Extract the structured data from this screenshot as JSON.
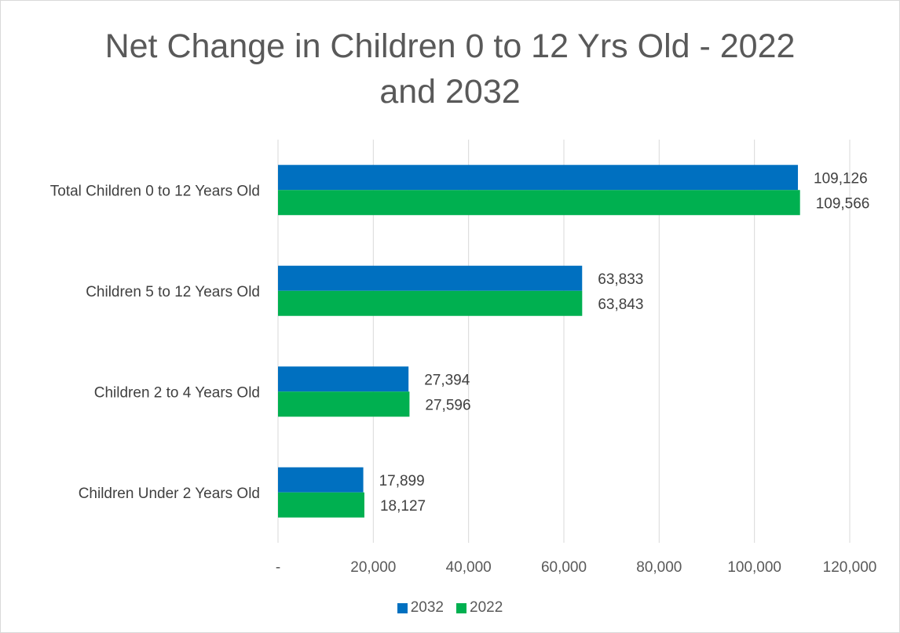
{
  "chart_data": {
    "type": "bar",
    "orientation": "horizontal",
    "title": "Net Change in Children 0 to 12 Yrs Old - 2022 and 2032",
    "categories": [
      "Total Children 0 to 12 Years Old",
      "Children 5 to 12 Years Old",
      "Children 2 to 4 Years Old",
      "Children Under 2 Years Old"
    ],
    "series": [
      {
        "name": "2032",
        "color": "#0070c0",
        "values": [
          109126,
          63833,
          27394,
          17899
        ],
        "labels": [
          "109,126",
          "63,833",
          "27,394",
          "17,899"
        ]
      },
      {
        "name": "2022",
        "color": "#00b050",
        "values": [
          109566,
          63843,
          27596,
          18127
        ],
        "labels": [
          "109,566",
          "63,843",
          "27,596",
          "18,127"
        ]
      }
    ],
    "xlim": [
      0,
      120000
    ],
    "x_ticks": [
      0,
      20000,
      40000,
      60000,
      80000,
      100000,
      120000
    ],
    "x_tick_labels": [
      "-",
      "20,000",
      "40,000",
      "60,000",
      "80,000",
      "100,000",
      "120,000"
    ],
    "grid": true,
    "legend_position": "bottom"
  }
}
